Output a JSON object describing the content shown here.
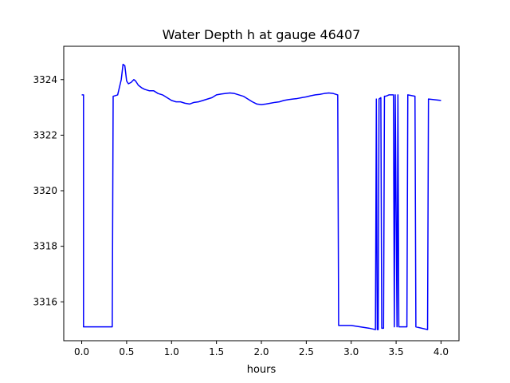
{
  "chart_data": {
    "type": "line",
    "title": "Water Depth h at gauge 46407",
    "xlabel": "hours",
    "ylabel": "",
    "xlim": [
      -0.2,
      4.2
    ],
    "ylim": [
      3314.6,
      3325.2
    ],
    "xticks": [
      0.0,
      0.5,
      1.0,
      1.5,
      2.0,
      2.5,
      3.0,
      3.5,
      4.0
    ],
    "xtick_labels": [
      "0.0",
      "0.5",
      "1.0",
      "1.5",
      "2.0",
      "2.5",
      "3.0",
      "3.5",
      "4.0"
    ],
    "yticks": [
      3316,
      3318,
      3320,
      3322,
      3324
    ],
    "ytick_labels": [
      "3316",
      "3318",
      "3320",
      "3322",
      "3324"
    ],
    "grid": false,
    "color": "#0000ff",
    "series": [
      {
        "x": [
          0.0,
          0.02,
          0.02,
          0.1,
          0.2,
          0.3,
          0.34,
          0.35,
          0.4,
          0.44,
          0.46,
          0.48,
          0.5,
          0.52,
          0.55,
          0.58,
          0.6,
          0.63,
          0.67,
          0.7,
          0.75,
          0.8,
          0.85,
          0.9,
          0.95,
          1.0,
          1.05,
          1.1,
          1.15,
          1.2,
          1.25,
          1.3,
          1.35,
          1.4,
          1.45,
          1.5,
          1.55,
          1.6,
          1.65,
          1.7,
          1.75,
          1.8,
          1.85,
          1.9,
          1.95,
          2.0,
          2.05,
          2.1,
          2.15,
          2.2,
          2.25,
          2.3,
          2.35,
          2.4,
          2.45,
          2.5,
          2.55,
          2.6,
          2.65,
          2.7,
          2.75,
          2.8,
          2.85,
          2.86,
          2.9,
          3.0,
          3.1,
          3.2,
          3.27,
          3.28,
          3.29,
          3.3,
          3.31,
          3.33,
          3.34,
          3.36,
          3.37,
          3.38,
          3.4,
          3.42,
          3.47,
          3.48,
          3.49,
          3.51,
          3.52,
          3.53,
          3.62,
          3.63,
          3.71,
          3.72,
          3.85,
          3.86,
          4.0
        ],
        "y": [
          3323.45,
          3323.45,
          3315.1,
          3315.1,
          3315.1,
          3315.1,
          3315.1,
          3323.4,
          3323.45,
          3324.0,
          3324.55,
          3324.5,
          3323.95,
          3323.85,
          3323.9,
          3324.0,
          3323.95,
          3323.8,
          3323.7,
          3323.65,
          3323.6,
          3323.6,
          3323.5,
          3323.45,
          3323.35,
          3323.25,
          3323.2,
          3323.2,
          3323.15,
          3323.12,
          3323.18,
          3323.2,
          3323.25,
          3323.3,
          3323.35,
          3323.45,
          3323.48,
          3323.5,
          3323.52,
          3323.5,
          3323.45,
          3323.4,
          3323.3,
          3323.2,
          3323.12,
          3323.1,
          3323.12,
          3323.15,
          3323.18,
          3323.2,
          3323.25,
          3323.28,
          3323.3,
          3323.32,
          3323.35,
          3323.38,
          3323.42,
          3323.45,
          3323.47,
          3323.5,
          3323.52,
          3323.5,
          3323.45,
          3315.15,
          3315.15,
          3315.15,
          3315.1,
          3315.05,
          3315.0,
          3323.3,
          3315.0,
          3315.0,
          3323.3,
          3323.35,
          3315.05,
          3315.05,
          3323.4,
          3323.4,
          3323.42,
          3323.45,
          3323.45,
          3315.1,
          3323.45,
          3315.1,
          3323.45,
          3315.1,
          3315.1,
          3323.45,
          3323.4,
          3315.1,
          3315.0,
          3323.3,
          3323.25
        ]
      }
    ]
  }
}
